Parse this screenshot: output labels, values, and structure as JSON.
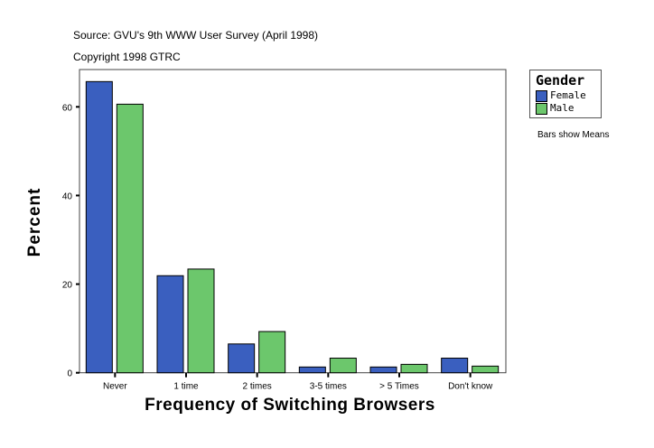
{
  "chart_data": {
    "type": "bar",
    "title": "Source: GVU's 9th WWW User Survey (April 1998)",
    "subtitle": "Copyright 1998 GTRC",
    "xlabel": "Frequency of Switching Browsers",
    "ylabel": "Percent",
    "categories": [
      "Never",
      "1 time",
      "2 times",
      "3-5 times",
      "> 5 Times",
      "Don't know"
    ],
    "series": [
      {
        "name": "Female",
        "color": "#3a5fbf",
        "values": [
          65.7,
          21.9,
          6.5,
          1.3,
          1.3,
          3.3
        ]
      },
      {
        "name": "Male",
        "color": "#6cc76c",
        "values": [
          60.6,
          23.4,
          9.3,
          3.3,
          1.9,
          1.5
        ]
      }
    ],
    "yticks": [
      0,
      20,
      40,
      60
    ],
    "ylim": [
      0,
      68
    ],
    "grid": false,
    "legend": {
      "title": "Gender",
      "position": "right"
    },
    "note": "Bars show Means"
  }
}
